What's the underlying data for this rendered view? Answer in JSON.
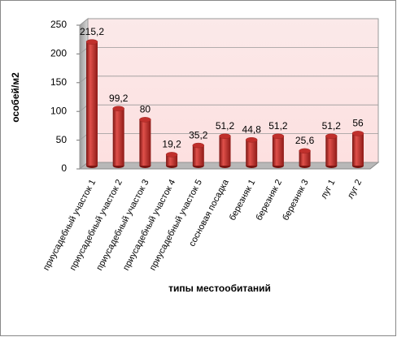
{
  "chart_data": {
    "type": "bar",
    "y_label": "особей/м2",
    "x_label": "типы местообитаний",
    "categories": [
      "приусадебный участок 1",
      "приусадебный участок 2",
      "приусадебный участок 3",
      "приусадебный участок 4",
      "приусадебный участок 5",
      "сосновая посадка",
      "березняк 1",
      "березняк 2",
      "березняк 3",
      "луг 1",
      "луг 2"
    ],
    "values": [
      215.2,
      99.2,
      80,
      19.2,
      35.2,
      51.2,
      44.8,
      51.2,
      25.6,
      51.2,
      56
    ],
    "value_labels": [
      "215,2",
      "99,2",
      "80",
      "19,2",
      "35,2",
      "51,2",
      "44,8",
      "51,2",
      "25,6",
      "51,2",
      "56"
    ],
    "color": "#c0302c",
    "ylim": [
      0,
      250
    ],
    "yticks": [
      0,
      50,
      100,
      150,
      200,
      250
    ],
    "grid": true
  }
}
